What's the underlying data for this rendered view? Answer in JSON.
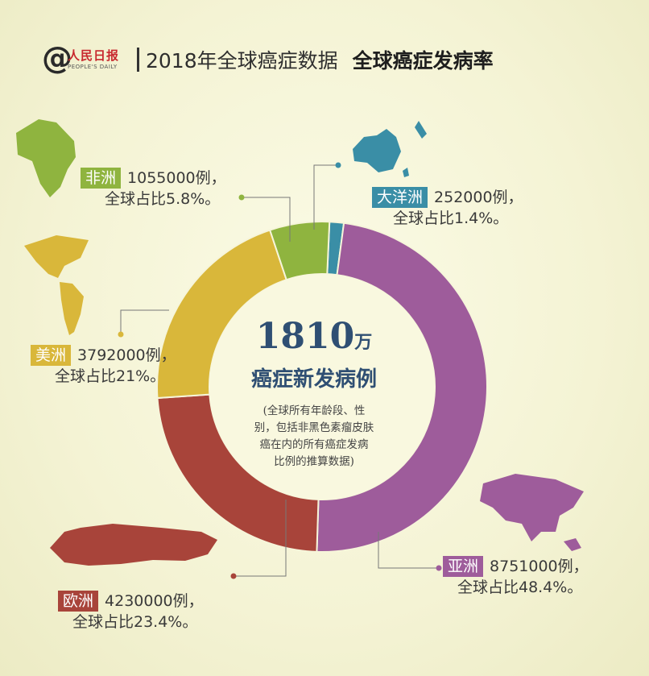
{
  "header": {
    "logo_symbol": "@",
    "logo_name": "人民日报",
    "logo_sub": "PEOPLE'S DAILY",
    "title": "2018年全球癌症数据",
    "subtitle": "全球癌症发病率"
  },
  "center": {
    "number": "1810",
    "unit": "万",
    "label": "癌症新发病例",
    "note_lines": [
      "(全球所有年龄段、性",
      "别，包括非黑色素瘤皮肤",
      "癌在内的所有癌症发病",
      "比例的推算数据)"
    ]
  },
  "chart_data": {
    "type": "pie",
    "style": "donut",
    "total": "1810万",
    "slices": [
      {
        "name": "大洋洲",
        "value": 252000,
        "percent": 1.4,
        "color": "#3a8ea6",
        "value_label": "252000例，",
        "percent_label": "全球占比1.4%。"
      },
      {
        "name": "亚洲",
        "value": 8751000,
        "percent": 48.4,
        "color": "#9e5c9b",
        "value_label": "8751000例，",
        "percent_label": "全球占比48.4%。"
      },
      {
        "name": "欧洲",
        "value": 4230000,
        "percent": 23.4,
        "color": "#a8443a",
        "value_label": "4230000例，",
        "percent_label": "全球占比23.4%。"
      },
      {
        "name": "美洲",
        "value": 3792000,
        "percent": 21,
        "color": "#d9b73a",
        "value_label": "3792000例，",
        "percent_label": "全球占比21%。"
      },
      {
        "name": "非洲",
        "value": 1055000,
        "percent": 5.8,
        "color": "#8fb43f",
        "value_label": "1055000例，",
        "percent_label": "全球占比5.8%。"
      }
    ]
  },
  "icons": {
    "africa": "africa-map-icon",
    "oceania": "oceania-map-icon",
    "americas": "americas-map-icon",
    "asia": "asia-map-icon",
    "europe": "europe-map-icon"
  }
}
